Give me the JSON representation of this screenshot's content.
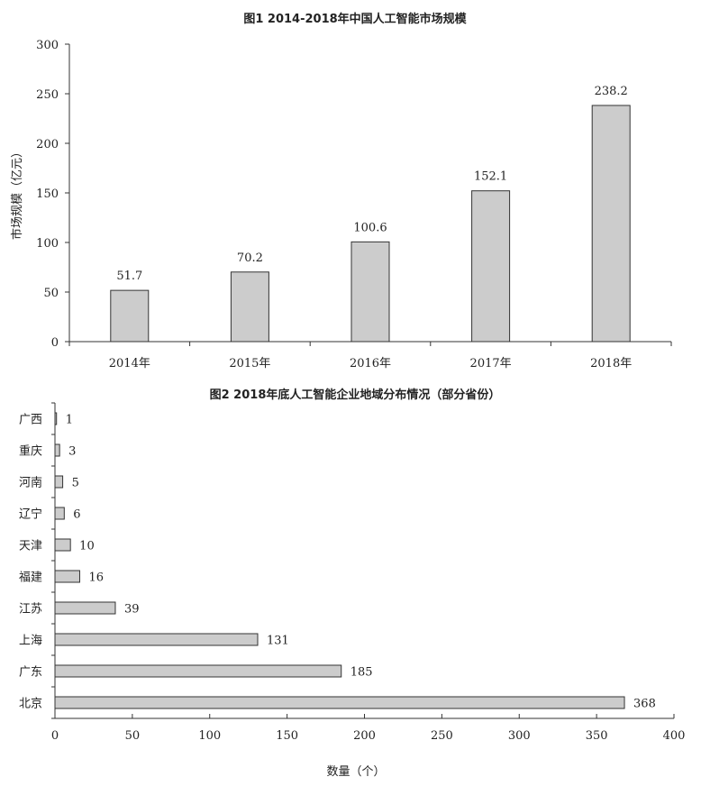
{
  "chart_data": [
    {
      "type": "bar",
      "title": "图1    2014-2018年中国人工智能市场规模",
      "xlabel": "",
      "ylabel": "市场规模（亿元）",
      "categories": [
        "2014年",
        "2015年",
        "2016年",
        "2017年",
        "2018年"
      ],
      "values": [
        51.7,
        70.2,
        100.6,
        152.1,
        238.2
      ],
      "data_labels": [
        "51.7",
        "70.2",
        "100.6",
        "152.1",
        "238.2"
      ],
      "ylim": [
        0,
        300
      ],
      "yticks": [
        0,
        50,
        100,
        150,
        200,
        250,
        300
      ],
      "grid": false,
      "bar_color": "#cccccc"
    },
    {
      "type": "bar",
      "orientation": "horizontal",
      "title": "图2    2018年底人工智能企业地域分布情况（部分省份）",
      "xlabel": "数量（个）",
      "ylabel": "",
      "categories": [
        "广西",
        "重庆",
        "河南",
        "辽宁",
        "天津",
        "福建",
        "江苏",
        "上海",
        "广东",
        "北京"
      ],
      "values": [
        1,
        3,
        5,
        6,
        10,
        16,
        39,
        131,
        185,
        368
      ],
      "data_labels": [
        "1",
        "3",
        "5",
        "6",
        "10",
        "16",
        "39",
        "131",
        "185",
        "368"
      ],
      "xlim": [
        0,
        400
      ],
      "xticks": [
        0,
        50,
        100,
        150,
        200,
        250,
        300,
        350,
        400
      ],
      "grid": false,
      "bar_color": "#cccccc"
    }
  ]
}
